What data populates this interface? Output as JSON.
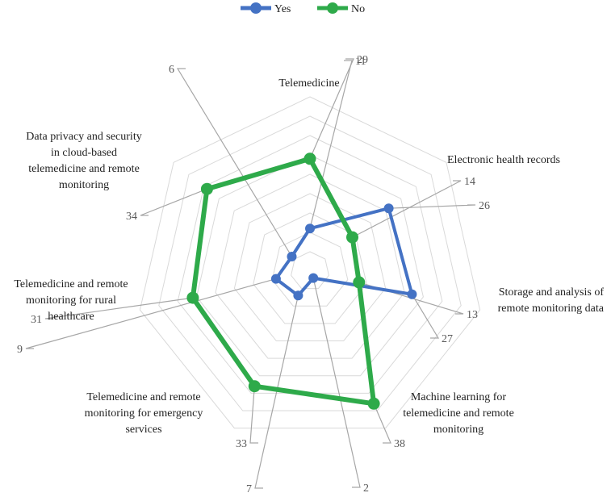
{
  "chart_data": {
    "type": "radar",
    "categories": [
      "Telemedicine",
      "Electronic health records",
      "Storage and analysis of remote monitoring data",
      "Machine learning for telemedicine and remote monitoring",
      "Telemedicine and remote monitoring for emergency services",
      "Telemedicine and remote monitoring for rural healthcare",
      "Data privacy and security in cloud-based telemedicine and remote monitoring"
    ],
    "series": [
      {
        "name": "Yes",
        "color": "#4472c4",
        "values": [
          11,
          26,
          27,
          2,
          7,
          9,
          6
        ]
      },
      {
        "name": "No",
        "color": "#2eaa4a",
        "values": [
          29,
          14,
          13,
          38,
          33,
          31,
          34
        ]
      }
    ],
    "rlim": [
      0,
      45
    ],
    "grid": true,
    "legend_position": "top"
  }
}
